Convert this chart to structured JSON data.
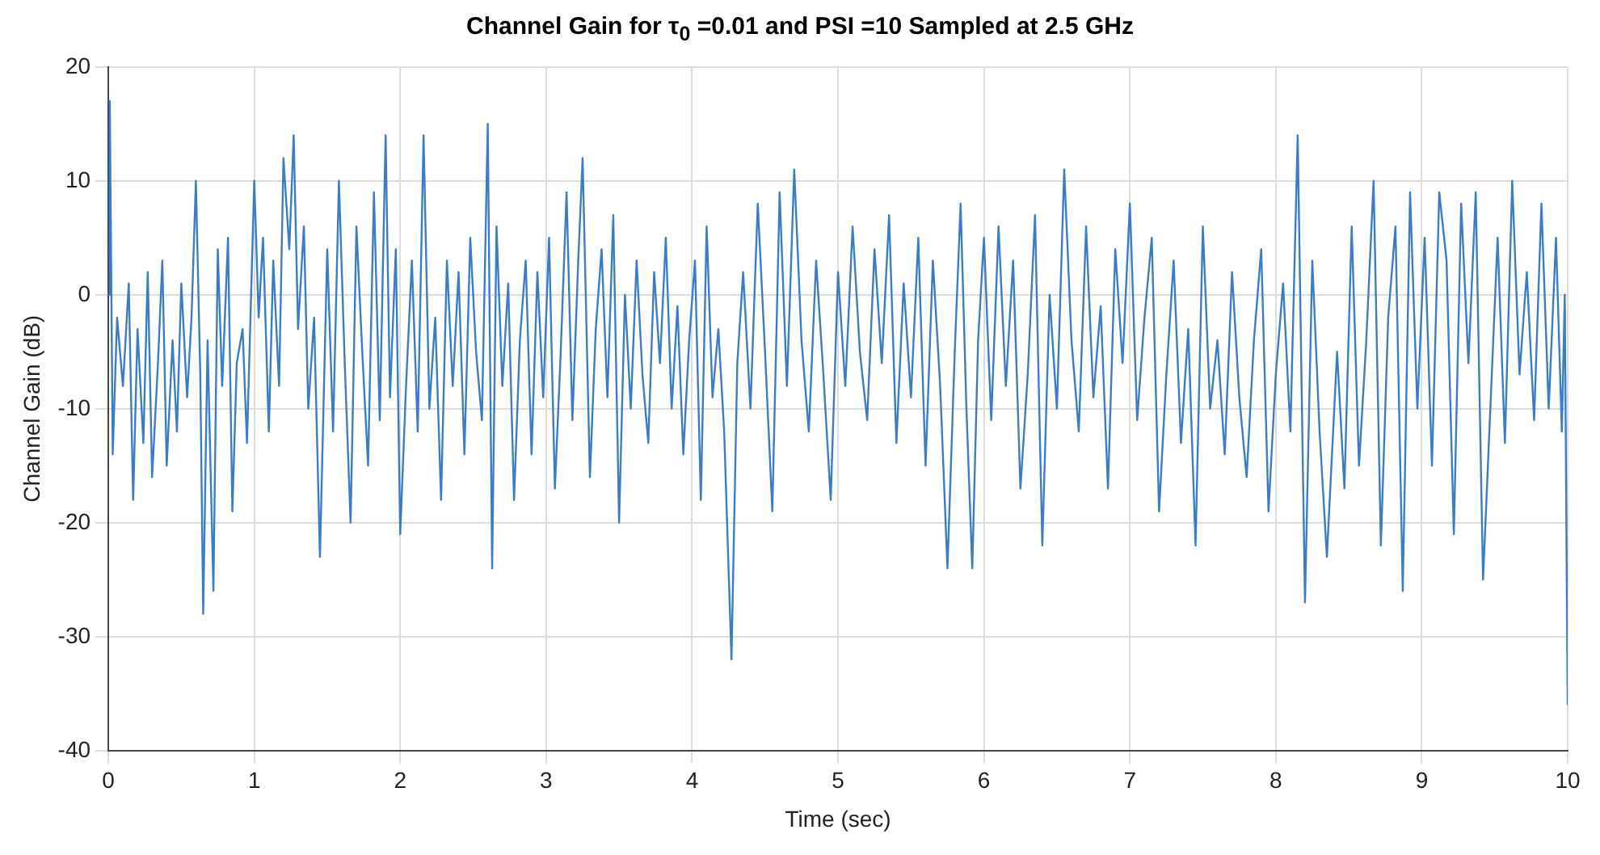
{
  "chart_data": {
    "type": "line",
    "title": "Channel Gain for τ$_{0}$ =0.01 and PSI =10 Sampled at 2.5 GHz",
    "xlabel": "Time (sec)",
    "ylabel": "Channel Gain (dB)",
    "xlim": [
      0,
      10
    ],
    "ylim": [
      -40,
      20
    ],
    "xticks": [
      0,
      1,
      2,
      3,
      4,
      5,
      6,
      7,
      8,
      9,
      10
    ],
    "yticks": [
      -40,
      -30,
      -20,
      -10,
      0,
      10,
      20
    ],
    "grid": true,
    "marker": "none",
    "line_style": "solid",
    "series": [
      {
        "color": "#3b7dc4",
        "x": [
          0,
          0.01,
          0.03,
          0.06,
          0.1,
          0.14,
          0.17,
          0.2,
          0.24,
          0.27,
          0.3,
          0.34,
          0.37,
          0.4,
          0.44,
          0.47,
          0.5,
          0.54,
          0.57,
          0.6,
          0.63,
          0.65,
          0.68,
          0.72,
          0.75,
          0.78,
          0.82,
          0.85,
          0.88,
          0.92,
          0.95,
          1.0,
          1.03,
          1.06,
          1.1,
          1.13,
          1.17,
          1.2,
          1.24,
          1.27,
          1.3,
          1.34,
          1.37,
          1.41,
          1.45,
          1.5,
          1.54,
          1.58,
          1.62,
          1.66,
          1.7,
          1.74,
          1.78,
          1.82,
          1.86,
          1.9,
          1.93,
          1.97,
          2.0,
          2.04,
          2.08,
          2.12,
          2.16,
          2.2,
          2.24,
          2.28,
          2.32,
          2.36,
          2.4,
          2.44,
          2.48,
          2.52,
          2.56,
          2.6,
          2.63,
          2.66,
          2.7,
          2.74,
          2.78,
          2.82,
          2.86,
          2.9,
          2.94,
          2.98,
          3.02,
          3.06,
          3.1,
          3.14,
          3.18,
          3.22,
          3.25,
          3.3,
          3.34,
          3.38,
          3.42,
          3.46,
          3.5,
          3.54,
          3.58,
          3.62,
          3.66,
          3.7,
          3.74,
          3.78,
          3.82,
          3.86,
          3.9,
          3.94,
          3.98,
          4.02,
          4.06,
          4.1,
          4.14,
          4.18,
          4.22,
          4.27,
          4.31,
          4.35,
          4.4,
          4.45,
          4.5,
          4.55,
          4.6,
          4.65,
          4.7,
          4.75,
          4.8,
          4.85,
          4.9,
          4.95,
          5.0,
          5.05,
          5.1,
          5.15,
          5.2,
          5.25,
          5.3,
          5.35,
          5.4,
          5.45,
          5.5,
          5.55,
          5.6,
          5.65,
          5.7,
          5.75,
          5.8,
          5.84,
          5.88,
          5.92,
          5.96,
          6.0,
          6.05,
          6.1,
          6.15,
          6.2,
          6.25,
          6.3,
          6.35,
          6.4,
          6.45,
          6.5,
          6.55,
          6.6,
          6.65,
          6.7,
          6.75,
          6.8,
          6.85,
          6.9,
          6.95,
          7.0,
          7.05,
          7.1,
          7.15,
          7.2,
          7.25,
          7.3,
          7.35,
          7.4,
          7.45,
          7.5,
          7.55,
          7.6,
          7.65,
          7.7,
          7.75,
          7.8,
          7.85,
          7.9,
          7.95,
          8.0,
          8.05,
          8.1,
          8.15,
          8.2,
          8.25,
          8.3,
          8.35,
          8.42,
          8.47,
          8.52,
          8.57,
          8.62,
          8.67,
          8.72,
          8.77,
          8.82,
          8.87,
          8.92,
          8.97,
          9.02,
          9.07,
          9.12,
          9.17,
          9.22,
          9.27,
          9.32,
          9.37,
          9.42,
          9.47,
          9.52,
          9.57,
          9.62,
          9.67,
          9.72,
          9.77,
          9.82,
          9.87,
          9.92,
          9.96,
          9.98,
          10.0
        ],
        "values": [
          0,
          17,
          -14,
          -2,
          -8,
          1,
          -18,
          -3,
          -13,
          2,
          -16,
          -6,
          3,
          -15,
          -4,
          -12,
          1,
          -9,
          -2,
          10,
          -7,
          -28,
          -4,
          -26,
          4,
          -8,
          5,
          -19,
          -6,
          -3,
          -13,
          10,
          -2,
          5,
          -12,
          3,
          -8,
          12,
          4,
          14,
          -3,
          6,
          -10,
          -2,
          -23,
          4,
          -12,
          10,
          -6,
          -20,
          6,
          -5,
          -15,
          9,
          -11,
          14,
          -9,
          4,
          -21,
          -8,
          3,
          -12,
          14,
          -10,
          -2,
          -18,
          3,
          -8,
          2,
          -14,
          5,
          -5,
          -11,
          15,
          -24,
          6,
          -8,
          1,
          -18,
          -4,
          3,
          -14,
          2,
          -9,
          5,
          -17,
          -5,
          9,
          -11,
          3,
          12,
          -16,
          -3,
          4,
          -9,
          7,
          -20,
          0,
          -10,
          3,
          -7,
          -13,
          2,
          -6,
          5,
          -10,
          -1,
          -14,
          -4,
          3,
          -18,
          6,
          -9,
          -3,
          -12,
          -32,
          -6,
          2,
          -10,
          8,
          -5,
          -19,
          9,
          -8,
          11,
          -4,
          -12,
          3,
          -7,
          -18,
          2,
          -8,
          6,
          -5,
          -11,
          4,
          -6,
          7,
          -13,
          1,
          -9,
          5,
          -15,
          3,
          -8,
          -24,
          -5,
          8,
          -10,
          -24,
          -4,
          5,
          -11,
          6,
          -8,
          3,
          -17,
          -7,
          7,
          -22,
          0,
          -10,
          11,
          -4,
          -12,
          6,
          -9,
          -1,
          -17,
          4,
          -6,
          8,
          -11,
          -2,
          5,
          -19,
          -7,
          3,
          -13,
          -3,
          -22,
          6,
          -10,
          -4,
          -14,
          2,
          -9,
          -16,
          -4,
          4,
          -19,
          -7,
          1,
          -12,
          14,
          -27,
          3,
          -12,
          -23,
          -5,
          -17,
          6,
          -15,
          -4,
          10,
          -22,
          -2,
          6,
          -26,
          9,
          -10,
          5,
          -15,
          9,
          3,
          -21,
          8,
          -6,
          9,
          -25,
          -10,
          5,
          -13,
          10,
          -7,
          2,
          -11,
          8,
          -10,
          5,
          -12,
          0,
          -36
        ]
      }
    ]
  }
}
